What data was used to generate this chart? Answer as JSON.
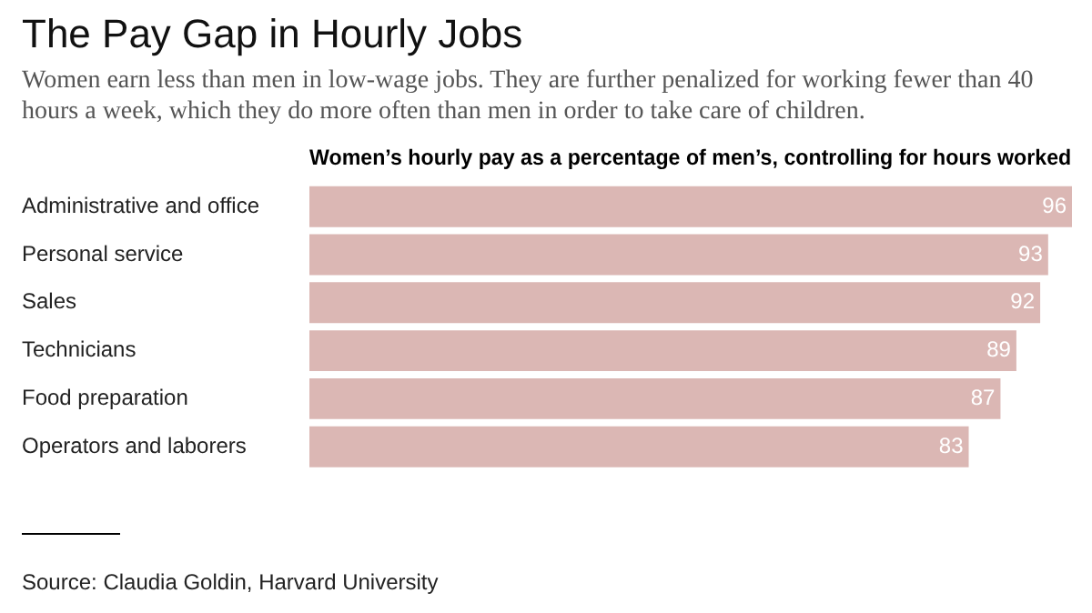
{
  "chart_data": {
    "type": "bar",
    "orientation": "horizontal",
    "title": "The Pay Gap in Hourly Jobs",
    "subtitle": "Women earn less than men in low-wage jobs. They are further penalized for working fewer than 40 hours a week, which they do more often than men in order to take care of children.",
    "xlabel": "Women’s hourly pay as a percentage of men’s, controlling for hours worked",
    "categories": [
      "Administrative and office",
      "Personal service",
      "Sales",
      "Technicians",
      "Food preparation",
      "Operators and laborers"
    ],
    "values": [
      96,
      93,
      92,
      89,
      87,
      83
    ],
    "color": "#dbb7b4",
    "data_labels": true,
    "grid": false,
    "legend": false,
    "annotations": [
      "Source: Claudia Goldin, Harvard University"
    ]
  }
}
